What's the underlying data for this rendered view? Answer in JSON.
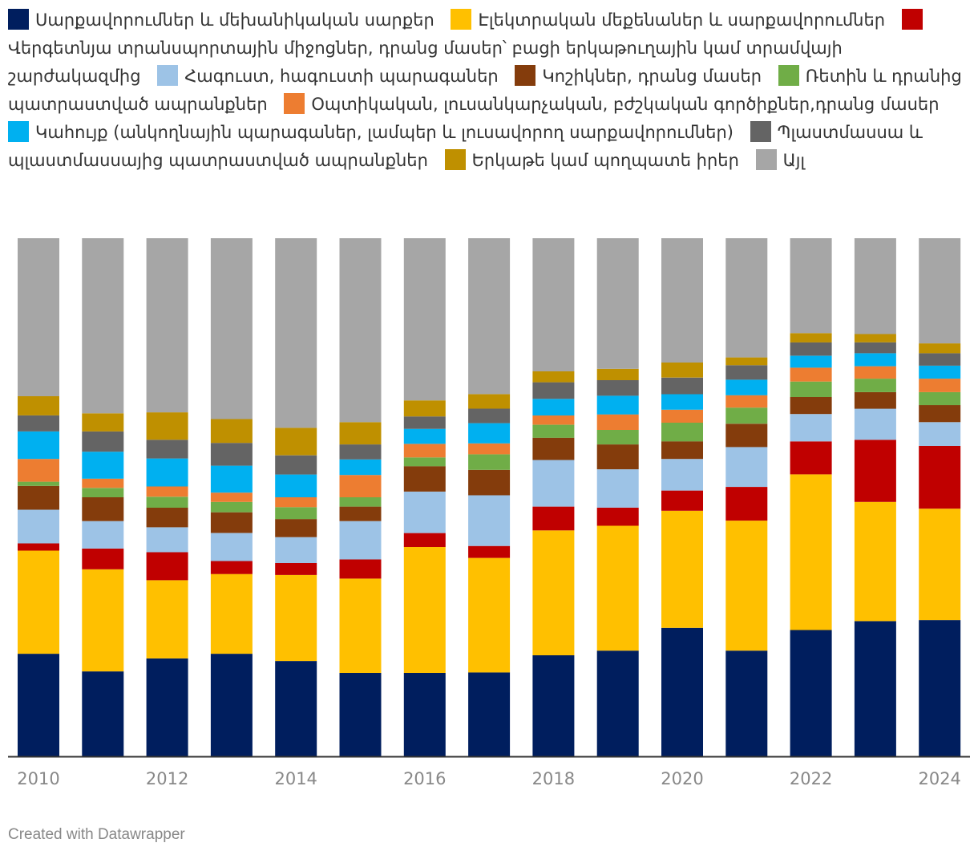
{
  "chart_data": {
    "type": "bar",
    "stacked": true,
    "normalized_100_percent": true,
    "categories": [
      "2010",
      "2011",
      "2012",
      "2013",
      "2014",
      "2015",
      "2016",
      "2017",
      "2018",
      "2019",
      "2020",
      "2021",
      "2022",
      "2023",
      "2024"
    ],
    "x_tick_labels": [
      "2010",
      "2012",
      "2014",
      "2016",
      "2018",
      "2020",
      "2022",
      "2024"
    ],
    "ylim": [
      0,
      100
    ],
    "legend_position": "top",
    "series": [
      {
        "name": "Սարքավորումներ և մեխանիկական սարքեր",
        "color": "#001e5e",
        "values": [
          19.8,
          16.4,
          18.9,
          19.8,
          18.4,
          16.1,
          16.1,
          16.2,
          19.5,
          20.4,
          24.8,
          20.4,
          24.5,
          26.1,
          26.3
        ]
      },
      {
        "name": "Էլեկտրական մեքենաներ և սարքավորումներ",
        "color": "#ffc000",
        "values": [
          19.9,
          19.7,
          15.1,
          15.4,
          16.6,
          18.2,
          24.3,
          22.1,
          24.1,
          24.1,
          22.6,
          25.1,
          30.2,
          23.0,
          21.5
        ]
      },
      {
        "name": "Վերգետնյա տրանսպորտային միջոցներ, դրանց մասեր՝ բացի երկաթուղային կամ տրամվայի շարժակազմից",
        "color": "#c00000",
        "values": [
          1.4,
          4.0,
          5.4,
          2.5,
          2.3,
          3.7,
          2.7,
          2.3,
          4.6,
          3.5,
          3.9,
          6.5,
          6.4,
          12.0,
          12.1
        ]
      },
      {
        "name": "Հագուստ, հագուստի պարագաներ",
        "color": "#9dc3e6",
        "values": [
          6.5,
          5.3,
          4.8,
          5.4,
          5.0,
          7.4,
          8.0,
          9.8,
          9.0,
          7.4,
          6.1,
          7.7,
          5.3,
          6.0,
          4.6
        ]
      },
      {
        "name": "Կոշիկներ, դրանց մասեր",
        "color": "#843c0c",
        "values": [
          4.6,
          4.6,
          3.8,
          4.0,
          3.5,
          2.8,
          4.9,
          4.9,
          4.3,
          4.8,
          3.4,
          4.5,
          3.3,
          3.2,
          3.3
        ]
      },
      {
        "name": "Ռետին և դրանից պատրաստված ապրանքներ",
        "color": "#70ad47",
        "values": [
          0.8,
          1.8,
          2.1,
          2.0,
          2.3,
          1.8,
          1.7,
          3.0,
          2.5,
          2.8,
          3.6,
          3.1,
          3.0,
          2.6,
          2.5
        ]
      },
      {
        "name": "Օպտիկական, լուսանկարչական, բժշկական գործիքներ,դրանց մասեր",
        "color": "#ed7d31",
        "values": [
          4.4,
          1.8,
          2.0,
          1.8,
          1.9,
          4.3,
          2.6,
          2.1,
          1.8,
          3.0,
          2.5,
          2.4,
          2.7,
          2.4,
          2.6
        ]
      },
      {
        "name": "Կահույք (անկողնային պարագաներ, լամպեր և լուսավորող սարքավորումներ)",
        "color": "#00b0f0",
        "values": [
          5.3,
          5.2,
          5.4,
          5.2,
          4.4,
          3.0,
          2.9,
          3.9,
          3.2,
          3.6,
          3.0,
          3.0,
          2.3,
          2.5,
          2.5
        ]
      },
      {
        "name": "Պլաստմասսա և պլաստմասսայից պատրաստված ապրանքներ",
        "color": "#646464",
        "values": [
          3.1,
          3.9,
          3.6,
          4.4,
          3.7,
          2.9,
          2.4,
          2.8,
          3.2,
          3.0,
          3.2,
          2.8,
          2.6,
          2.1,
          2.4
        ]
      },
      {
        "name": "Երկաթե կամ պողպատե իրեր",
        "color": "#bf9000",
        "values": [
          3.7,
          3.5,
          5.3,
          4.6,
          5.3,
          4.3,
          3.1,
          2.8,
          2.1,
          2.2,
          2.9,
          1.5,
          1.8,
          1.6,
          1.9
        ]
      },
      {
        "name": "Այլ",
        "color": "#a6a6a6",
        "values": [
          30.5,
          33.8,
          33.6,
          34.9,
          36.6,
          35.5,
          31.3,
          30.1,
          25.7,
          25.2,
          24.0,
          23.0,
          18.4,
          18.5,
          20.3
        ]
      }
    ]
  },
  "footer": {
    "credit": "Created with Datawrapper"
  }
}
